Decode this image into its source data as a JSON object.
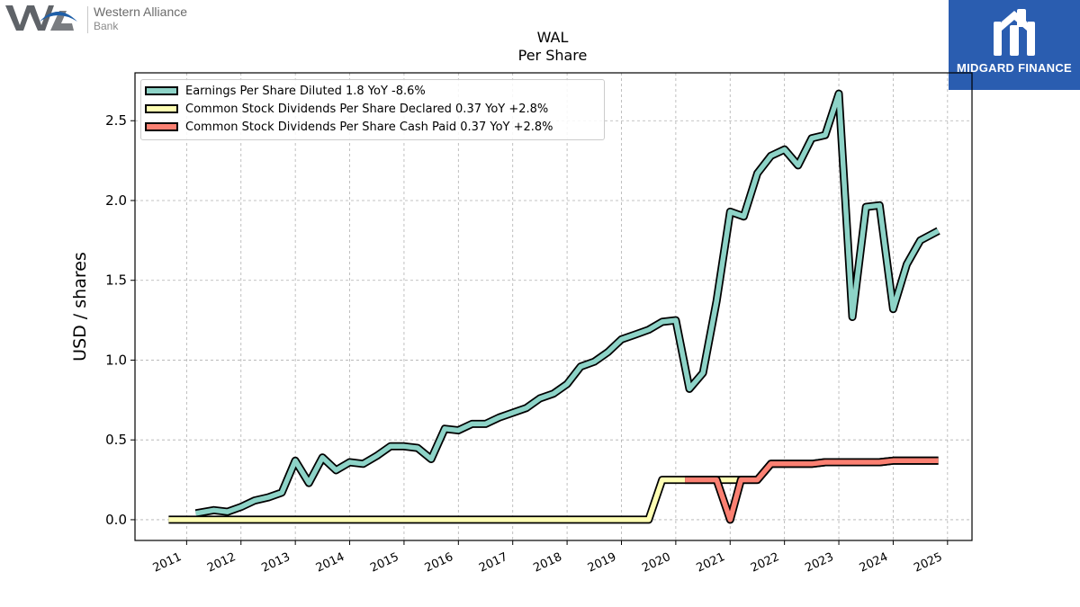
{
  "header": {
    "brand_left": {
      "name": "Western Alliance",
      "sub": "Bank"
    },
    "brand_right": {
      "name": "MIDGARD FINANCE"
    }
  },
  "chart_data": {
    "type": "line",
    "title": "WAL",
    "subtitle": "Per  Share",
    "xlabel": "",
    "ylabel": "USD / shares",
    "xlim": [
      2010.05,
      2025.45
    ],
    "ylim": [
      -0.13,
      2.8
    ],
    "x_ticks": [
      2011,
      2012,
      2013,
      2014,
      2015,
      2016,
      2017,
      2018,
      2019,
      2020,
      2021,
      2022,
      2023,
      2024,
      2025
    ],
    "y_ticks": [
      0.0,
      0.5,
      1.0,
      1.5,
      2.0,
      2.5
    ],
    "grid": true,
    "legend_position": "top-left",
    "series": [
      {
        "name": "Earnings Per Share Diluted",
        "legend": "Earnings Per Share Diluted  1.8 YoY -8.6%",
        "color": "#8dd3c7",
        "points": [
          [
            2011.17,
            0.04
          ],
          [
            2011.5,
            0.06
          ],
          [
            2011.75,
            0.05
          ],
          [
            2012.0,
            0.08
          ],
          [
            2012.25,
            0.12
          ],
          [
            2012.5,
            0.14
          ],
          [
            2012.75,
            0.17
          ],
          [
            2013.0,
            0.37
          ],
          [
            2013.25,
            0.23
          ],
          [
            2013.5,
            0.39
          ],
          [
            2013.75,
            0.31
          ],
          [
            2014.0,
            0.36
          ],
          [
            2014.25,
            0.35
          ],
          [
            2014.5,
            0.4
          ],
          [
            2014.75,
            0.46
          ],
          [
            2015.0,
            0.46
          ],
          [
            2015.25,
            0.45
          ],
          [
            2015.5,
            0.38
          ],
          [
            2015.75,
            0.57
          ],
          [
            2016.0,
            0.56
          ],
          [
            2016.25,
            0.6
          ],
          [
            2016.5,
            0.6
          ],
          [
            2016.75,
            0.64
          ],
          [
            2017.0,
            0.67
          ],
          [
            2017.25,
            0.7
          ],
          [
            2017.5,
            0.76
          ],
          [
            2017.75,
            0.79
          ],
          [
            2018.0,
            0.85
          ],
          [
            2018.25,
            0.96
          ],
          [
            2018.5,
            0.99
          ],
          [
            2018.75,
            1.05
          ],
          [
            2019.0,
            1.13
          ],
          [
            2019.25,
            1.16
          ],
          [
            2019.5,
            1.19
          ],
          [
            2019.75,
            1.24
          ],
          [
            2020.0,
            1.25
          ],
          [
            2020.25,
            0.82
          ],
          [
            2020.5,
            0.92
          ],
          [
            2020.75,
            1.37
          ],
          [
            2021.0,
            1.93
          ],
          [
            2021.25,
            1.9
          ],
          [
            2021.5,
            2.17
          ],
          [
            2021.75,
            2.28
          ],
          [
            2022.0,
            2.32
          ],
          [
            2022.25,
            2.22
          ],
          [
            2022.5,
            2.39
          ],
          [
            2022.75,
            2.41
          ],
          [
            2023.0,
            2.67
          ],
          [
            2023.25,
            1.27
          ],
          [
            2023.5,
            1.96
          ],
          [
            2023.75,
            1.97
          ],
          [
            2024.0,
            1.32
          ],
          [
            2024.25,
            1.6
          ],
          [
            2024.5,
            1.75
          ],
          [
            2024.83,
            1.81
          ]
        ]
      },
      {
        "name": "Common Stock Dividends Per Share Declared",
        "legend": "Common Stock Dividends Per Share Declared  0.37 YoY +2.8%",
        "color": "#ffffb3",
        "points": [
          [
            2010.67,
            0.0
          ],
          [
            2019.5,
            0.0
          ],
          [
            2019.75,
            0.25
          ],
          [
            2020.0,
            0.25
          ],
          [
            2020.25,
            0.25
          ],
          [
            2020.5,
            0.25
          ],
          [
            2020.75,
            0.25
          ],
          [
            2021.0,
            0.25
          ],
          [
            2021.25,
            0.25
          ],
          [
            2021.5,
            0.25
          ],
          [
            2021.75,
            0.35
          ],
          [
            2022.0,
            0.35
          ],
          [
            2022.25,
            0.35
          ],
          [
            2022.5,
            0.35
          ],
          [
            2022.75,
            0.36
          ],
          [
            2023.0,
            0.36
          ],
          [
            2023.25,
            0.36
          ],
          [
            2023.5,
            0.36
          ],
          [
            2023.75,
            0.36
          ],
          [
            2024.0,
            0.37
          ],
          [
            2024.25,
            0.37
          ],
          [
            2024.5,
            0.37
          ],
          [
            2024.83,
            0.37
          ]
        ]
      },
      {
        "name": "Common Stock Dividends Per Share Cash Paid",
        "legend": "Common Stock Dividends Per Share Cash Paid  0.37 YoY +2.8%",
        "color": "#fb8072",
        "points": [
          [
            2020.17,
            0.25
          ],
          [
            2020.5,
            0.25
          ],
          [
            2020.75,
            0.25
          ],
          [
            2021.0,
            0.0
          ],
          [
            2021.2,
            0.25
          ],
          [
            2021.5,
            0.25
          ],
          [
            2021.75,
            0.35
          ],
          [
            2022.0,
            0.35
          ],
          [
            2022.25,
            0.35
          ],
          [
            2022.5,
            0.35
          ],
          [
            2022.75,
            0.36
          ],
          [
            2023.0,
            0.36
          ],
          [
            2023.25,
            0.36
          ],
          [
            2023.5,
            0.36
          ],
          [
            2023.75,
            0.36
          ],
          [
            2024.0,
            0.37
          ],
          [
            2024.25,
            0.37
          ],
          [
            2024.5,
            0.37
          ],
          [
            2024.83,
            0.37
          ]
        ]
      }
    ]
  }
}
